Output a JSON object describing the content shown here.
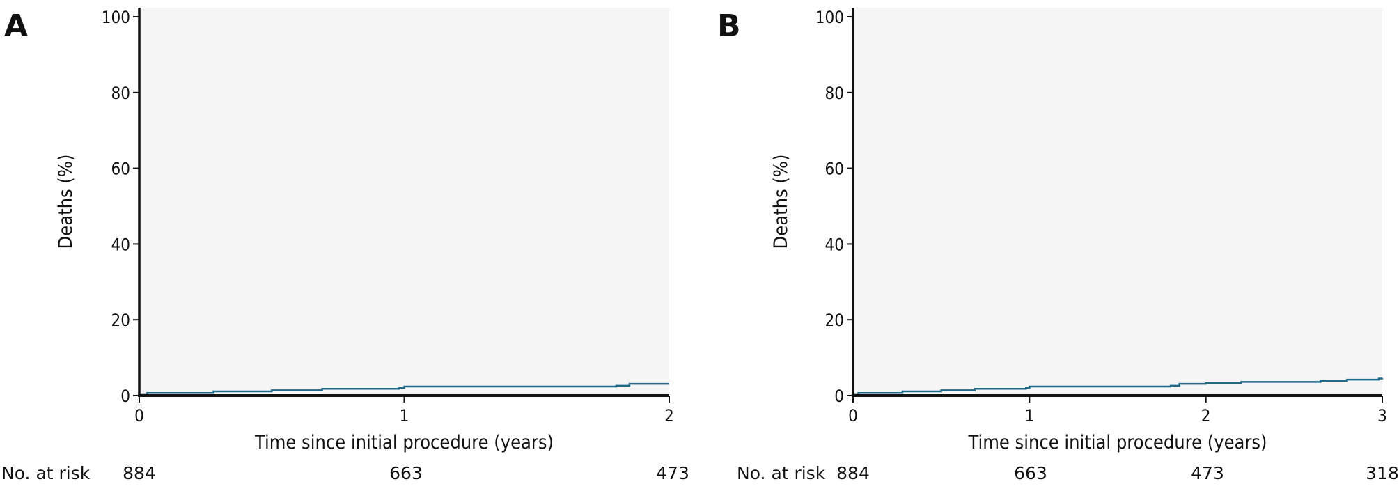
{
  "chart_data": [
    {
      "type": "line",
      "panel_label": "A",
      "xlabel": "Time since initial procedure (years)",
      "ylabel": "Deaths (%)",
      "xlim": [
        0,
        2
      ],
      "ylim": [
        0,
        100
      ],
      "x_ticks": [
        0,
        1,
        2
      ],
      "y_ticks": [
        0,
        20,
        40,
        60,
        80,
        100
      ],
      "series_color": "#1f6a8a",
      "plot_background": "#f5f5f5",
      "series": [
        {
          "step": true,
          "x": [
            0,
            0.03,
            0.28,
            0.5,
            0.69,
            0.98,
            1.0,
            1.8,
            1.85,
            2.0
          ],
          "y": [
            0.2,
            0.7,
            1.1,
            1.4,
            1.8,
            2.0,
            2.4,
            2.6,
            3.1,
            3.1
          ]
        }
      ],
      "risk_table": {
        "label": "No. at risk",
        "x": [
          0,
          1,
          2
        ],
        "values": [
          "884",
          "663",
          "473"
        ]
      }
    },
    {
      "type": "line",
      "panel_label": "B",
      "xlabel": "Time since initial procedure (years)",
      "ylabel": "Deaths (%)",
      "xlim": [
        0,
        3
      ],
      "ylim": [
        0,
        100
      ],
      "x_ticks": [
        0,
        1,
        2,
        3
      ],
      "y_ticks": [
        0,
        20,
        40,
        60,
        80,
        100
      ],
      "series_color": "#1f6a8a",
      "plot_background": "#f5f5f5",
      "series": [
        {
          "step": true,
          "x": [
            0,
            0.03,
            0.28,
            0.5,
            0.69,
            0.98,
            1.0,
            1.8,
            1.85,
            2.0,
            2.2,
            2.65,
            2.8,
            2.98,
            3.0
          ],
          "y": [
            0.2,
            0.7,
            1.1,
            1.4,
            1.8,
            2.0,
            2.4,
            2.6,
            3.1,
            3.3,
            3.6,
            3.9,
            4.2,
            4.5,
            4.6
          ]
        }
      ],
      "risk_table": {
        "label": "No. at risk",
        "x": [
          0,
          1,
          2,
          3
        ],
        "values": [
          "884",
          "663",
          "473",
          "318"
        ]
      }
    }
  ]
}
